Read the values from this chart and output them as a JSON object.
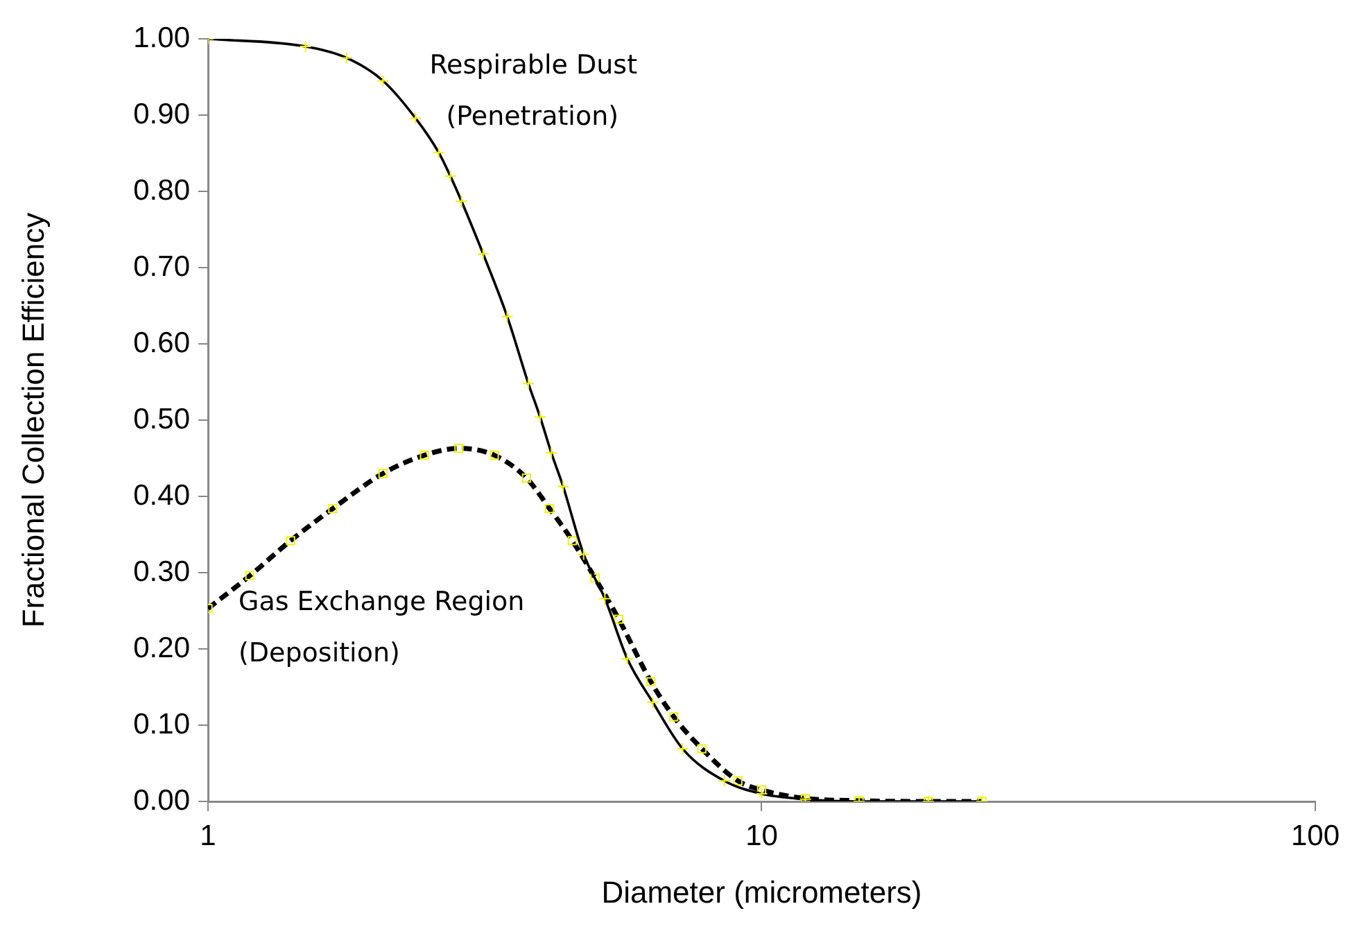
{
  "chart_data": {
    "type": "line",
    "xlabel": "Diameter (micrometers)",
    "ylabel": "Fractional Collection Efficiency",
    "log": "x",
    "xlim": [
      1,
      100
    ],
    "xticks": [
      1,
      10,
      100
    ],
    "ylim": [
      0,
      1
    ],
    "yticks": [
      {
        "value": 0,
        "label": "0.00"
      },
      {
        "value": 0.1,
        "label": "0.10"
      },
      {
        "value": 0.2,
        "label": "0.20"
      },
      {
        "value": 0.3,
        "label": "0.30"
      },
      {
        "value": 0.4,
        "label": "0.40"
      },
      {
        "value": 0.5,
        "label": "0.50"
      },
      {
        "value": 0.6,
        "label": "0.60"
      },
      {
        "value": 0.7,
        "label": "0.70"
      },
      {
        "value": 0.8,
        "label": "0.80"
      },
      {
        "value": 0.9,
        "label": "0.90"
      },
      {
        "value": 1,
        "label": "1.00"
      }
    ],
    "grid": false,
    "legend": false,
    "annotations": [
      "Respirable Dust\n(Penetration)",
      "Gas Exchange Region\n(Deposition)"
    ],
    "series": [
      {
        "color": "#000000",
        "marker": "cross",
        "line_style": "solid",
        "x": [
          1,
          1.5,
          1.78,
          2.07,
          2.37,
          2.61,
          2.74,
          2.87,
          3.14,
          3.47,
          3.79,
          3.98,
          4.17,
          4.38,
          4.77,
          5.21,
          5.72,
          6.36,
          7.2,
          8.56,
          10,
          12,
          15,
          20,
          25
        ],
        "values": [
          1,
          0.99,
          0.975,
          0.945,
          0.896,
          0.851,
          0.82,
          0.787,
          0.718,
          0.636,
          0.548,
          0.504,
          0.457,
          0.413,
          0.324,
          0.266,
          0.187,
          0.13,
          0.069,
          0.027,
          0.01,
          0.003,
          0,
          0,
          0
        ]
      },
      {
        "color": "#000000",
        "marker": "square",
        "line_style": "dashed",
        "x": [
          1,
          1.19,
          1.41,
          1.68,
          2.07,
          2.46,
          2.84,
          3.29,
          3.76,
          4.14,
          4.55,
          5,
          5.52,
          6.31,
          6.94,
          7.8,
          9.06,
          10,
          12,
          15,
          20,
          25
        ],
        "values": [
          0.253,
          0.296,
          0.342,
          0.384,
          0.43,
          0.454,
          0.463,
          0.454,
          0.424,
          0.384,
          0.342,
          0.293,
          0.239,
          0.157,
          0.111,
          0.069,
          0.027,
          0.015,
          0.004,
          0.001,
          0,
          0
        ]
      }
    ]
  }
}
